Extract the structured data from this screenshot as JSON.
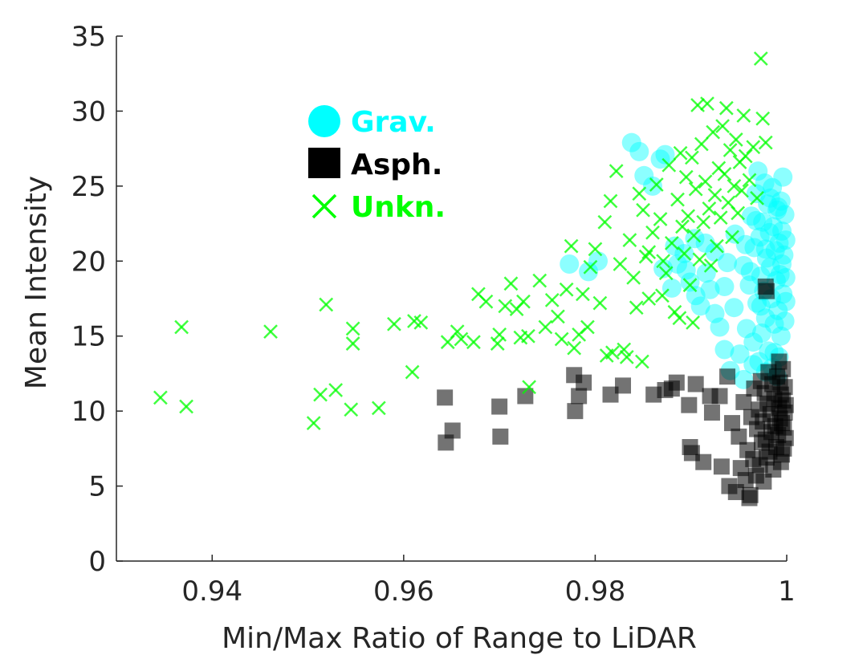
{
  "chart_data": {
    "type": "scatter",
    "xlabel": "Min/Max Ratio of Range to LiDAR",
    "ylabel": "Mean Intensity",
    "xlim": [
      0.93,
      1.0
    ],
    "ylim": [
      0,
      35
    ],
    "x_ticks": [
      0.94,
      0.96,
      0.98,
      1.0
    ],
    "x_tick_labels": [
      "0.94",
      "0.96",
      "0.98",
      "1"
    ],
    "y_ticks": [
      0,
      5,
      10,
      15,
      20,
      25,
      30,
      35
    ],
    "y_tick_labels": [
      "0",
      "5",
      "10",
      "15",
      "20",
      "25",
      "30",
      "35"
    ],
    "grid": false,
    "legend_position": "top-left",
    "series": [
      {
        "name": "Grav.",
        "marker": "circle",
        "color": "#00ffff",
        "points": [
          [
            0.9773,
            19.8
          ],
          [
            0.9793,
            19.3
          ],
          [
            0.9803,
            20.0
          ],
          [
            0.9838,
            27.9
          ],
          [
            0.9846,
            27.3
          ],
          [
            0.9851,
            25.7
          ],
          [
            0.986,
            25.0
          ],
          [
            0.9868,
            26.8
          ],
          [
            0.9873,
            27.1
          ],
          [
            0.9871,
            19.5
          ],
          [
            0.9883,
            21.0
          ],
          [
            0.9886,
            19.8
          ],
          [
            0.9893,
            20.5
          ],
          [
            0.9899,
            18.6
          ],
          [
            0.9904,
            21.5
          ],
          [
            0.991,
            17.0
          ],
          [
            0.9916,
            19.2
          ],
          [
            0.992,
            18.1
          ],
          [
            0.9925,
            16.5
          ],
          [
            0.993,
            15.6
          ],
          [
            0.9935,
            14.1
          ],
          [
            0.9938,
            19.9
          ],
          [
            0.9941,
            12.7
          ],
          [
            0.9946,
            21.8
          ],
          [
            0.9951,
            13.8
          ],
          [
            0.9955,
            19.7
          ],
          [
            0.9958,
            15.5
          ],
          [
            0.9961,
            18.4
          ],
          [
            0.9963,
            23.0
          ],
          [
            0.9965,
            14.6
          ],
          [
            0.9966,
            20.9
          ],
          [
            0.9968,
            24.5
          ],
          [
            0.9969,
            17.2
          ],
          [
            0.997,
            26.0
          ],
          [
            0.9971,
            13.3
          ],
          [
            0.9972,
            21.6
          ],
          [
            0.9973,
            19.0
          ],
          [
            0.9974,
            15.2
          ],
          [
            0.9975,
            22.6
          ],
          [
            0.9976,
            18.0
          ],
          [
            0.9977,
            25.2
          ],
          [
            0.9978,
            16.2
          ],
          [
            0.9979,
            20.2
          ],
          [
            0.998,
            23.8
          ],
          [
            0.9981,
            14.0
          ],
          [
            0.9982,
            21.9
          ],
          [
            0.9983,
            19.6
          ],
          [
            0.9984,
            17.5
          ],
          [
            0.9985,
            24.9
          ],
          [
            0.9986,
            22.3
          ],
          [
            0.9987,
            15.8
          ],
          [
            0.9988,
            20.7
          ],
          [
            0.9989,
            18.7
          ],
          [
            0.999,
            23.4
          ],
          [
            0.9991,
            16.7
          ],
          [
            0.9992,
            21.2
          ],
          [
            0.9993,
            19.1
          ],
          [
            0.9994,
            24.0
          ],
          [
            0.9995,
            22.0
          ],
          [
            0.9996,
            17.8
          ],
          [
            0.9997,
            20.4
          ],
          [
            0.9998,
            23.1
          ],
          [
            0.9999,
            18.9
          ],
          [
            0.9999,
            21.4
          ],
          [
            0.9998,
            16.0
          ],
          [
            0.9996,
            25.6
          ],
          [
            0.9994,
            15.0
          ],
          [
            0.9992,
            13.6
          ],
          [
            0.999,
            12.3
          ],
          [
            0.9985,
            12.9
          ],
          [
            0.9978,
            12.6
          ],
          [
            0.9965,
            13.1
          ],
          [
            0.9955,
            12.1
          ],
          [
            0.9945,
            16.9
          ],
          [
            0.9935,
            18.3
          ],
          [
            0.9925,
            20.6
          ],
          [
            0.9915,
            21.2
          ],
          [
            0.9905,
            17.7
          ],
          [
            0.9895,
            19.4
          ],
          [
            0.988,
            18.2
          ],
          [
            0.9962,
            19.3
          ],
          [
            0.9968,
            22.7
          ],
          [
            0.9973,
            17.0
          ],
          [
            0.9978,
            20.8
          ],
          [
            0.9983,
            24.2
          ],
          [
            0.9987,
            13.9
          ],
          [
            0.9991,
            23.6
          ],
          [
            0.9995,
            19.8
          ],
          [
            0.9999,
            17.3
          ],
          [
            0.9957,
            21.1
          ]
        ]
      },
      {
        "name": "Asph.",
        "marker": "square",
        "color": "#000000",
        "points": [
          [
            0.9643,
            10.9
          ],
          [
            0.9644,
            7.9
          ],
          [
            0.9651,
            8.7
          ],
          [
            0.97,
            10.3
          ],
          [
            0.9701,
            8.3
          ],
          [
            0.9727,
            11.0
          ],
          [
            0.9778,
            12.4
          ],
          [
            0.9779,
            10.0
          ],
          [
            0.9783,
            11.0
          ],
          [
            0.9788,
            11.9
          ],
          [
            0.9816,
            11.1
          ],
          [
            0.9829,
            11.7
          ],
          [
            0.9861,
            11.1
          ],
          [
            0.9873,
            11.4
          ],
          [
            0.988,
            11.5
          ],
          [
            0.9885,
            11.9
          ],
          [
            0.9898,
            10.4
          ],
          [
            0.9899,
            7.6
          ],
          [
            0.9901,
            7.2
          ],
          [
            0.9905,
            11.8
          ],
          [
            0.9913,
            6.6
          ],
          [
            0.992,
            11.0
          ],
          [
            0.9922,
            9.9
          ],
          [
            0.993,
            11.0
          ],
          [
            0.9932,
            6.3
          ],
          [
            0.9938,
            12.3
          ],
          [
            0.994,
            5.0
          ],
          [
            0.9943,
            9.2
          ],
          [
            0.9947,
            4.6
          ],
          [
            0.995,
            8.3
          ],
          [
            0.9952,
            6.2
          ],
          [
            0.9955,
            10.6
          ],
          [
            0.9957,
            5.4
          ],
          [
            0.9959,
            7.4
          ],
          [
            0.9961,
            4.2
          ],
          [
            0.9963,
            9.6
          ],
          [
            0.9965,
            6.8
          ],
          [
            0.9966,
            11.5
          ],
          [
            0.9968,
            5.7
          ],
          [
            0.9969,
            8.8
          ],
          [
            0.9971,
            10.1
          ],
          [
            0.9972,
            6.4
          ],
          [
            0.9973,
            12.0
          ],
          [
            0.9974,
            7.9
          ],
          [
            0.9975,
            9.3
          ],
          [
            0.9976,
            5.3
          ],
          [
            0.9977,
            11.2
          ],
          [
            0.9978,
            8.1
          ],
          [
            0.9979,
            6.9
          ],
          [
            0.998,
            10.5
          ],
          [
            0.9981,
            12.6
          ],
          [
            0.9982,
            7.3
          ],
          [
            0.9983,
            9.8
          ],
          [
            0.9984,
            8.6
          ],
          [
            0.9985,
            11.8
          ],
          [
            0.9986,
            6.1
          ],
          [
            0.9987,
            10.8
          ],
          [
            0.9988,
            9.0
          ],
          [
            0.9989,
            7.6
          ],
          [
            0.999,
            12.3
          ],
          [
            0.9991,
            8.4
          ],
          [
            0.9992,
            10.2
          ],
          [
            0.9993,
            9.5
          ],
          [
            0.9994,
            11.1
          ],
          [
            0.9995,
            7.1
          ],
          [
            0.9996,
            10.7
          ],
          [
            0.9997,
            8.9
          ],
          [
            0.9998,
            9.9
          ],
          [
            0.9999,
            10.4
          ],
          [
            0.9999,
            8.2
          ],
          [
            0.9998,
            11.6
          ],
          [
            0.9997,
            7.5
          ],
          [
            0.9996,
            12.8
          ],
          [
            0.9995,
            9.2
          ],
          [
            0.9994,
            6.6
          ],
          [
            0.9993,
            11.9
          ],
          [
            0.9992,
            13.3
          ],
          [
            0.9978,
            18.3
          ],
          [
            0.9979,
            18.0
          ],
          [
            0.9962,
            4.4
          ]
        ]
      },
      {
        "name": "Unkn.",
        "marker": "x",
        "color": "#00ff00",
        "points": [
          [
            0.9346,
            10.9
          ],
          [
            0.9368,
            15.6
          ],
          [
            0.9373,
            10.3
          ],
          [
            0.9461,
            15.3
          ],
          [
            0.9506,
            9.2
          ],
          [
            0.9513,
            11.1
          ],
          [
            0.9519,
            17.1
          ],
          [
            0.9529,
            11.4
          ],
          [
            0.9545,
            10.1
          ],
          [
            0.9547,
            14.5
          ],
          [
            0.9547,
            15.5
          ],
          [
            0.9574,
            10.2
          ],
          [
            0.959,
            15.8
          ],
          [
            0.9609,
            12.6
          ],
          [
            0.9611,
            16.0
          ],
          [
            0.9618,
            15.9
          ],
          [
            0.9646,
            14.6
          ],
          [
            0.9656,
            15.3
          ],
          [
            0.966,
            14.8
          ],
          [
            0.9673,
            14.6
          ],
          [
            0.9678,
            17.8
          ],
          [
            0.9686,
            17.3
          ],
          [
            0.9698,
            14.5
          ],
          [
            0.97,
            15.1
          ],
          [
            0.9706,
            17.0
          ],
          [
            0.9712,
            18.5
          ],
          [
            0.9718,
            16.8
          ],
          [
            0.9722,
            14.9
          ],
          [
            0.9725,
            17.3
          ],
          [
            0.973,
            15.0
          ],
          [
            0.9731,
            11.6
          ],
          [
            0.9742,
            18.7
          ],
          [
            0.9748,
            15.6
          ],
          [
            0.9755,
            17.4
          ],
          [
            0.9761,
            16.3
          ],
          [
            0.9765,
            14.8
          ],
          [
            0.977,
            18.1
          ],
          [
            0.9775,
            21.0
          ],
          [
            0.9778,
            14.2
          ],
          [
            0.9783,
            15.1
          ],
          [
            0.9787,
            17.8
          ],
          [
            0.9792,
            15.6
          ],
          [
            0.9795,
            19.6
          ],
          [
            0.98,
            20.8
          ],
          [
            0.9805,
            17.2
          ],
          [
            0.981,
            22.6
          ],
          [
            0.9812,
            13.7
          ],
          [
            0.9816,
            24.0
          ],
          [
            0.9818,
            13.9
          ],
          [
            0.9822,
            26.0
          ],
          [
            0.9826,
            19.8
          ],
          [
            0.983,
            14.1
          ],
          [
            0.9833,
            13.6
          ],
          [
            0.9836,
            21.4
          ],
          [
            0.984,
            18.9
          ],
          [
            0.9843,
            16.9
          ],
          [
            0.9846,
            24.5
          ],
          [
            0.985,
            23.4
          ],
          [
            0.9853,
            20.3
          ],
          [
            0.9856,
            17.5
          ],
          [
            0.986,
            21.9
          ],
          [
            0.9864,
            25.1
          ],
          [
            0.9868,
            22.8
          ],
          [
            0.9871,
            20.0
          ],
          [
            0.9874,
            19.2
          ],
          [
            0.9877,
            26.4
          ],
          [
            0.988,
            21.2
          ],
          [
            0.9883,
            16.6
          ],
          [
            0.9886,
            24.1
          ],
          [
            0.9889,
            27.2
          ],
          [
            0.9891,
            22.3
          ],
          [
            0.9893,
            20.5
          ],
          [
            0.9895,
            25.6
          ],
          [
            0.9897,
            23.0
          ],
          [
            0.9899,
            18.4
          ],
          [
            0.9901,
            26.9
          ],
          [
            0.9903,
            21.7
          ],
          [
            0.9905,
            24.8
          ],
          [
            0.9907,
            30.4
          ],
          [
            0.9909,
            20.1
          ],
          [
            0.9911,
            27.8
          ],
          [
            0.9913,
            22.6
          ],
          [
            0.9915,
            25.3
          ],
          [
            0.9917,
            30.5
          ],
          [
            0.9919,
            23.5
          ],
          [
            0.9921,
            19.7
          ],
          [
            0.9923,
            28.6
          ],
          [
            0.9925,
            24.4
          ],
          [
            0.9927,
            21.0
          ],
          [
            0.9929,
            26.2
          ],
          [
            0.9931,
            22.9
          ],
          [
            0.9933,
            29.0
          ],
          [
            0.9935,
            25.8
          ],
          [
            0.9937,
            30.2
          ],
          [
            0.9939,
            23.9
          ],
          [
            0.9941,
            27.4
          ],
          [
            0.9943,
            21.6
          ],
          [
            0.9945,
            25.0
          ],
          [
            0.9947,
            28.1
          ],
          [
            0.9949,
            23.2
          ],
          [
            0.9951,
            26.6
          ],
          [
            0.9953,
            24.7
          ],
          [
            0.9955,
            29.7
          ],
          [
            0.9957,
            27.0
          ],
          [
            0.9961,
            25.4
          ],
          [
            0.9965,
            27.6
          ],
          [
            0.9969,
            24.2
          ],
          [
            0.9973,
            33.5
          ],
          [
            0.9975,
            29.5
          ],
          [
            0.9978,
            27.9
          ],
          [
            0.9856,
            20.6
          ],
          [
            0.987,
            17.7
          ],
          [
            0.9888,
            16.2
          ],
          [
            0.9902,
            15.9
          ],
          [
            0.9849,
            13.3
          ]
        ]
      }
    ]
  }
}
